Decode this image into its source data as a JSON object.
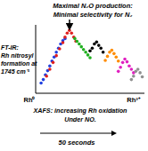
{
  "chart_data": {
    "type": "scatter",
    "marker": "circle",
    "tick_labels": false,
    "grid": false,
    "xlim": [
      0,
      1
    ],
    "ylim": [
      0,
      1
    ],
    "annotations": [
      "Maximal N₂O production:",
      "Minimal selectivity for N₂",
      "FT-IR:",
      "Rh nitrosyl",
      "formation at",
      "1745 cm⁻¹",
      "Rh⁰",
      "Rh³⁺",
      "XAFS: increasing Rh oxidation",
      "Under NO.",
      "50 seconds"
    ],
    "series": [
      {
        "color": "#2040e0",
        "x": [
          0.05,
          0.07,
          0.09,
          0.11,
          0.13,
          0.15,
          0.17,
          0.19,
          0.21,
          0.23,
          0.25,
          0.27
        ],
        "values": [
          0.15,
          0.2,
          0.27,
          0.33,
          0.4,
          0.47,
          0.53,
          0.6,
          0.66,
          0.72,
          0.77,
          0.8
        ]
      },
      {
        "color": "#e02020",
        "x": [
          0.1,
          0.13,
          0.16,
          0.19,
          0.22,
          0.25,
          0.27,
          0.29,
          0.31,
          0.33,
          0.35,
          0.37
        ],
        "values": [
          0.25,
          0.35,
          0.45,
          0.55,
          0.65,
          0.74,
          0.82,
          0.88,
          0.92,
          0.88,
          0.82,
          0.76
        ]
      },
      {
        "color": "#20b020",
        "x": [
          0.36,
          0.38,
          0.4,
          0.42,
          0.44,
          0.46,
          0.48,
          0.5
        ],
        "values": [
          0.8,
          0.76,
          0.72,
          0.68,
          0.64,
          0.6,
          0.56,
          0.52
        ]
      },
      {
        "color": "#000000",
        "x": [
          0.5,
          0.52,
          0.54,
          0.56,
          0.58,
          0.6,
          0.62
        ],
        "values": [
          0.62,
          0.66,
          0.72,
          0.75,
          0.7,
          0.66,
          0.6
        ]
      },
      {
        "color": "#ff8c00",
        "x": [
          0.64,
          0.66,
          0.68,
          0.7,
          0.72,
          0.74,
          0.76
        ],
        "values": [
          0.48,
          0.54,
          0.6,
          0.63,
          0.58,
          0.53,
          0.47
        ]
      },
      {
        "color": "#e020c0",
        "x": [
          0.76,
          0.78,
          0.8,
          0.82,
          0.84,
          0.86,
          0.88,
          0.9
        ],
        "values": [
          0.32,
          0.38,
          0.45,
          0.5,
          0.46,
          0.4,
          0.35,
          0.3
        ]
      },
      {
        "color": "#909090",
        "x": [
          0.88,
          0.9,
          0.92,
          0.94,
          0.96,
          0.98
        ],
        "values": [
          0.2,
          0.25,
          0.32,
          0.35,
          0.3,
          0.24
        ]
      }
    ]
  }
}
